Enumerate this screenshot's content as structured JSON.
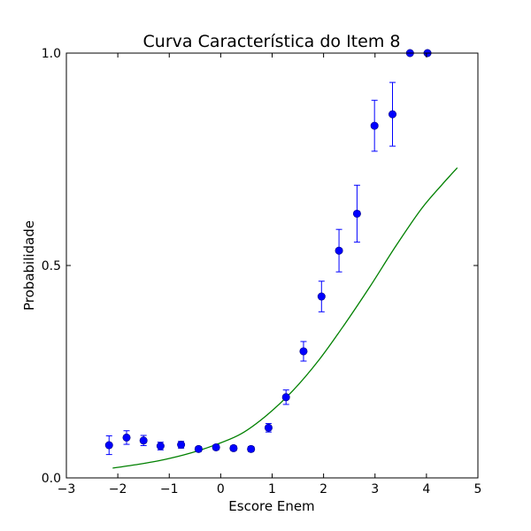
{
  "chart_data": {
    "type": "scatter",
    "title": "Curva Característica do Item 8",
    "xlabel": "Escore Enem",
    "ylabel": "Probabilidade",
    "xlim": [
      -3,
      5
    ],
    "ylim": [
      0.0,
      1.0
    ],
    "x_ticks": [
      -3,
      -2,
      -1,
      0,
      1,
      2,
      3,
      4,
      5
    ],
    "x_tick_labels": [
      "−3",
      "−2",
      "−1",
      "0",
      "1",
      "2",
      "3",
      "4",
      "5"
    ],
    "y_ticks": [
      0.0,
      0.5,
      1.0
    ],
    "y_tick_labels": [
      "0.0",
      "0.5",
      "1.0"
    ],
    "grid": false,
    "colors": {
      "points": "#0000ff",
      "curve": "#008000"
    },
    "observed": {
      "x": [
        -2.17,
        -1.83,
        -1.5,
        -1.17,
        -0.77,
        -0.43,
        -0.09,
        0.25,
        0.59,
        0.93,
        1.27,
        1.61,
        1.96,
        2.3,
        2.65,
        2.99,
        3.34,
        3.68,
        4.02
      ],
      "y": [
        0.077,
        0.095,
        0.088,
        0.075,
        0.078,
        0.068,
        0.072,
        0.07,
        0.068,
        0.118,
        0.19,
        0.298,
        0.427,
        0.535,
        0.622,
        0.829,
        0.856,
        1.0,
        1.0
      ],
      "y_err": [
        0.022,
        0.016,
        0.012,
        0.009,
        0.008,
        0.006,
        0.006,
        0.006,
        0.006,
        0.01,
        0.017,
        0.023,
        0.036,
        0.05,
        0.067,
        0.06,
        0.075,
        0.0,
        0.0
      ]
    },
    "fitted_curve": {
      "x": [
        -2.1,
        -1.6,
        -1.1,
        -0.6,
        -0.1,
        0.4,
        0.9,
        1.4,
        1.9,
        2.4,
        2.9,
        3.4,
        3.9,
        4.3,
        4.6
      ],
      "y": [
        0.023,
        0.032,
        0.043,
        0.058,
        0.078,
        0.104,
        0.148,
        0.205,
        0.276,
        0.36,
        0.45,
        0.545,
        0.633,
        0.69,
        0.73
      ]
    }
  }
}
